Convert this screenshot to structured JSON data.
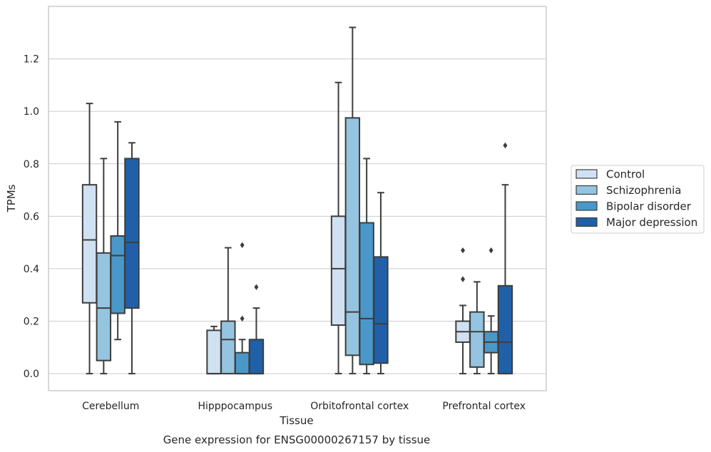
{
  "chart_data": {
    "type": "boxplot",
    "title": "",
    "caption": "Gene expression for ENSG00000267157 by tissue",
    "xlabel": "Tissue",
    "ylabel": "TPMs",
    "ylim": [
      -0.065,
      1.4
    ],
    "yticks": [
      0.0,
      0.2,
      0.4,
      0.6,
      0.8,
      1.0,
      1.2
    ],
    "ytick_labels": [
      "0.0",
      "0.2",
      "0.4",
      "0.6",
      "0.8",
      "1.0",
      "1.2"
    ],
    "grid": true,
    "legend_placement": "right",
    "categories": [
      "Cerebellum",
      "Hipppocampus",
      "Orbitofrontal cortex",
      "Prefrontal cortex"
    ],
    "series": [
      {
        "name": "Control",
        "color": "#d0e1f2",
        "boxes": [
          {
            "whislo": 0.0,
            "q1": 0.27,
            "med": 0.51,
            "q3": 0.72,
            "whishi": 1.03,
            "fliers": []
          },
          {
            "whislo": 0.0,
            "q1": 0.0,
            "med": 0.0,
            "q3": 0.165,
            "whishi": 0.18,
            "fliers": []
          },
          {
            "whislo": 0.0,
            "q1": 0.185,
            "med": 0.4,
            "q3": 0.6,
            "whishi": 1.11,
            "fliers": []
          },
          {
            "whislo": 0.0,
            "q1": 0.12,
            "med": 0.16,
            "q3": 0.2,
            "whishi": 0.26,
            "fliers": [
              0.36,
              0.47
            ]
          }
        ]
      },
      {
        "name": "Schizophrenia",
        "color": "#94c4df",
        "boxes": [
          {
            "whislo": 0.0,
            "q1": 0.05,
            "med": 0.25,
            "q3": 0.46,
            "whishi": 0.82,
            "fliers": []
          },
          {
            "whislo": 0.0,
            "q1": 0.0,
            "med": 0.13,
            "q3": 0.2,
            "whishi": 0.48,
            "fliers": []
          },
          {
            "whislo": 0.0,
            "q1": 0.07,
            "med": 0.235,
            "q3": 0.975,
            "whishi": 1.32,
            "fliers": []
          },
          {
            "whislo": 0.0,
            "q1": 0.025,
            "med": 0.16,
            "q3": 0.235,
            "whishi": 0.35,
            "fliers": []
          }
        ]
      },
      {
        "name": "Bipolar disorder",
        "color": "#4a98c9",
        "boxes": [
          {
            "whislo": 0.13,
            "q1": 0.23,
            "med": 0.45,
            "q3": 0.525,
            "whishi": 0.96,
            "fliers": []
          },
          {
            "whislo": 0.0,
            "q1": 0.0,
            "med": 0.0,
            "q3": 0.08,
            "whishi": 0.13,
            "fliers": [
              0.21,
              0.49
            ]
          },
          {
            "whislo": 0.0,
            "q1": 0.035,
            "med": 0.21,
            "q3": 0.575,
            "whishi": 0.82,
            "fliers": []
          },
          {
            "whislo": 0.0,
            "q1": 0.08,
            "med": 0.12,
            "q3": 0.16,
            "whishi": 0.22,
            "fliers": [
              0.47
            ]
          }
        ]
      },
      {
        "name": "Major depression",
        "color": "#2060a8",
        "boxes": [
          {
            "whislo": 0.0,
            "q1": 0.25,
            "med": 0.5,
            "q3": 0.82,
            "whishi": 0.88,
            "fliers": []
          },
          {
            "whislo": 0.0,
            "q1": 0.0,
            "med": 0.0,
            "q3": 0.13,
            "whishi": 0.25,
            "fliers": [
              0.33
            ]
          },
          {
            "whislo": 0.0,
            "q1": 0.04,
            "med": 0.19,
            "q3": 0.445,
            "whishi": 0.69,
            "fliers": []
          },
          {
            "whislo": 0.0,
            "q1": 0.0,
            "med": 0.12,
            "q3": 0.335,
            "whishi": 0.72,
            "fliers": [
              0.87
            ]
          }
        ]
      }
    ],
    "colors": {
      "grid": "#cccccc",
      "frame": "#cccccc",
      "line": "#3d3d3d",
      "text": "#262626"
    }
  }
}
